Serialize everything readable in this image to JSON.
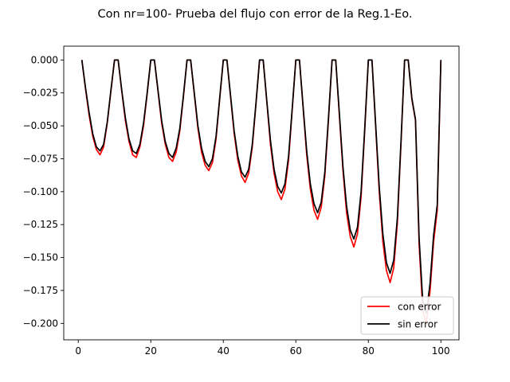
{
  "chart_data": {
    "type": "line",
    "title": "Con nr=100- Prueba del flujo con error de la Reg.1-Eo.",
    "xlabel": "",
    "ylabel": "",
    "xlim": [
      -4,
      105
    ],
    "ylim": [
      -0.2125,
      0.0105
    ],
    "xticks": [
      0,
      20,
      40,
      60,
      80,
      100
    ],
    "xtick_labels": [
      "0",
      "20",
      "40",
      "60",
      "80",
      "100"
    ],
    "yticks": [
      0.0,
      -0.025,
      -0.05,
      -0.075,
      -0.1,
      -0.125,
      -0.15,
      -0.175,
      -0.2
    ],
    "ytick_labels": [
      "0.000",
      "−0.025",
      "−0.050",
      "−0.075",
      "−0.100",
      "−0.125",
      "−0.150",
      "−0.175",
      "−0.200"
    ],
    "grid": false,
    "legend_position": "lower-right",
    "x": [
      1,
      2,
      3,
      4,
      5,
      6,
      7,
      8,
      9,
      10,
      11,
      12,
      13,
      14,
      15,
      16,
      17,
      18,
      19,
      20,
      21,
      22,
      23,
      24,
      25,
      26,
      27,
      28,
      29,
      30,
      31,
      32,
      33,
      34,
      35,
      36,
      37,
      38,
      39,
      40,
      41,
      42,
      43,
      44,
      45,
      46,
      47,
      48,
      49,
      50,
      51,
      52,
      53,
      54,
      55,
      56,
      57,
      58,
      59,
      60,
      61,
      62,
      63,
      64,
      65,
      66,
      67,
      68,
      69,
      70,
      71,
      72,
      73,
      74,
      75,
      76,
      77,
      78,
      79,
      80,
      81,
      82,
      83,
      84,
      85,
      86,
      87,
      88,
      89,
      90,
      91,
      92,
      93,
      94,
      95,
      96,
      97,
      98,
      99,
      100
    ],
    "series": [
      {
        "name": "con error",
        "color": "#ff0000",
        "values": [
          0,
          -0.022,
          -0.042,
          -0.058,
          -0.068,
          -0.072,
          -0.066,
          -0.048,
          -0.024,
          0,
          0,
          -0.024,
          -0.046,
          -0.062,
          -0.072,
          -0.074,
          -0.066,
          -0.05,
          -0.026,
          0,
          0,
          -0.024,
          -0.048,
          -0.064,
          -0.074,
          -0.077,
          -0.07,
          -0.054,
          -0.028,
          0,
          0,
          -0.026,
          -0.052,
          -0.07,
          -0.08,
          -0.084,
          -0.078,
          -0.06,
          -0.03,
          0,
          0,
          -0.028,
          -0.056,
          -0.076,
          -0.088,
          -0.093,
          -0.086,
          -0.066,
          -0.034,
          0,
          0,
          -0.032,
          -0.064,
          -0.086,
          -0.1,
          -0.106,
          -0.098,
          -0.076,
          -0.038,
          0,
          0,
          -0.036,
          -0.072,
          -0.098,
          -0.114,
          -0.121,
          -0.112,
          -0.088,
          -0.046,
          0,
          0,
          -0.042,
          -0.084,
          -0.116,
          -0.134,
          -0.142,
          -0.132,
          -0.104,
          -0.054,
          0,
          0,
          -0.05,
          -0.1,
          -0.138,
          -0.16,
          -0.169,
          -0.158,
          -0.124,
          -0.064,
          0,
          0,
          -0.03,
          -0.046,
          -0.14,
          -0.19,
          -0.2,
          -0.176,
          -0.138,
          -0.114,
          0
        ]
      },
      {
        "name": "sin error",
        "color": "#000000",
        "values": [
          0,
          -0.021,
          -0.04,
          -0.056,
          -0.066,
          -0.069,
          -0.064,
          -0.047,
          -0.023,
          0,
          0,
          -0.023,
          -0.044,
          -0.06,
          -0.069,
          -0.071,
          -0.064,
          -0.048,
          -0.025,
          0,
          0,
          -0.023,
          -0.046,
          -0.062,
          -0.071,
          -0.074,
          -0.067,
          -0.052,
          -0.027,
          0,
          0,
          -0.025,
          -0.05,
          -0.067,
          -0.077,
          -0.081,
          -0.075,
          -0.058,
          -0.029,
          0,
          0,
          -0.027,
          -0.054,
          -0.073,
          -0.085,
          -0.089,
          -0.083,
          -0.064,
          -0.033,
          0,
          0,
          -0.031,
          -0.061,
          -0.083,
          -0.096,
          -0.101,
          -0.094,
          -0.073,
          -0.037,
          0,
          0,
          -0.035,
          -0.069,
          -0.094,
          -0.109,
          -0.116,
          -0.108,
          -0.085,
          -0.044,
          0,
          0,
          -0.04,
          -0.081,
          -0.111,
          -0.129,
          -0.136,
          -0.127,
          -0.1,
          -0.052,
          0,
          0,
          -0.048,
          -0.096,
          -0.132,
          -0.154,
          -0.162,
          -0.152,
          -0.12,
          -0.062,
          0,
          0,
          -0.029,
          -0.045,
          -0.135,
          -0.183,
          -0.192,
          -0.17,
          -0.133,
          -0.11,
          0
        ]
      }
    ]
  }
}
